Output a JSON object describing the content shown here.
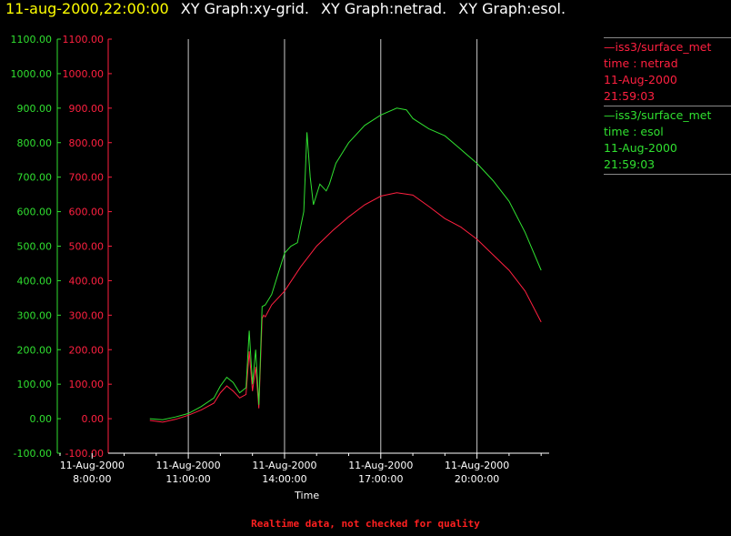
{
  "header": {
    "timestamp": "11-aug-2000,22:00:00",
    "graph1": "XY Graph:xy-grid.",
    "graph2": "XY Graph:netrad.",
    "graph3": "XY Graph:esol."
  },
  "colors": {
    "background": "#000000",
    "timestamp": "#ffff00",
    "netrad": "#ff2040",
    "esol": "#30e030",
    "axes_x": "#ffffff",
    "footer": "#ff2020"
  },
  "legend": [
    {
      "line1": "—iss3/surface_met",
      "line2": "time : netrad",
      "line3": "11-Aug-2000",
      "line4": "21:59:03"
    },
    {
      "line1": "—iss3/surface_met",
      "line2": "time : esol",
      "line3": "11-Aug-2000",
      "line4": "21:59:03"
    }
  ],
  "footer": "Realtime data, not checked for quality",
  "chart_data": {
    "type": "line",
    "xlabel": "Time",
    "ylabel": "",
    "x_unit": "hours since 11-Aug-2000 00:00",
    "xlim": [
      7.0,
      22.25
    ],
    "ylim": [
      -100,
      1100
    ],
    "yticks": [
      -100,
      0,
      100,
      200,
      300,
      400,
      500,
      600,
      700,
      800,
      900,
      1000,
      1100
    ],
    "ytick_labels": [
      "-100.00",
      "0.00",
      "100.00",
      "200.00",
      "300.00",
      "400.00",
      "500.00",
      "600.00",
      "700.00",
      "800.00",
      "900.00",
      "1000.00",
      "1100.00"
    ],
    "xticks": [
      {
        "x": 8,
        "date": "11-Aug-2000",
        "time": "8:00:00"
      },
      {
        "x": 11,
        "date": "11-Aug-2000",
        "time": "11:00:00"
      },
      {
        "x": 14,
        "date": "11-Aug-2000",
        "time": "14:00:00"
      },
      {
        "x": 17,
        "date": "11-Aug-2000",
        "time": "17:00:00"
      },
      {
        "x": 20,
        "date": "11-Aug-2000",
        "time": "20:00:00"
      }
    ],
    "vertical_gridlines": [
      11,
      14,
      17,
      20
    ],
    "series": [
      {
        "name": "netrad",
        "x": [
          9.8,
          10.2,
          10.6,
          11.0,
          11.4,
          11.8,
          12.0,
          12.2,
          12.4,
          12.6,
          12.8,
          12.9,
          13.0,
          13.1,
          13.2,
          13.3,
          13.35,
          13.4,
          13.6,
          14.0,
          14.5,
          15.0,
          15.5,
          16.0,
          16.5,
          17.0,
          17.5,
          18.0,
          18.5,
          19.0,
          19.5,
          20.0,
          20.5,
          21.0,
          21.5,
          22.0
        ],
        "y": [
          -5,
          -10,
          -2,
          10,
          25,
          45,
          75,
          95,
          80,
          60,
          70,
          195,
          80,
          150,
          30,
          290,
          300,
          295,
          330,
          370,
          440,
          500,
          545,
          585,
          620,
          645,
          655,
          648,
          615,
          580,
          555,
          520,
          475,
          430,
          370,
          280
        ]
      },
      {
        "name": "esol",
        "x": [
          9.8,
          10.2,
          10.6,
          11.0,
          11.4,
          11.8,
          12.0,
          12.2,
          12.4,
          12.6,
          12.8,
          12.9,
          13.0,
          13.1,
          13.2,
          13.3,
          13.4,
          13.6,
          13.8,
          14.0,
          14.2,
          14.4,
          14.6,
          14.7,
          14.8,
          14.9,
          15.1,
          15.3,
          15.4,
          15.6,
          16.0,
          16.5,
          17.0,
          17.5,
          17.8,
          18.0,
          18.5,
          19.0,
          19.5,
          20.0,
          20.5,
          21.0,
          21.5,
          22.0
        ],
        "y": [
          0,
          -3,
          5,
          15,
          35,
          60,
          95,
          120,
          105,
          75,
          90,
          255,
          100,
          200,
          40,
          325,
          330,
          360,
          420,
          480,
          500,
          510,
          600,
          830,
          700,
          620,
          680,
          660,
          680,
          740,
          800,
          850,
          880,
          900,
          895,
          870,
          840,
          820,
          780,
          740,
          690,
          630,
          540,
          430
        ]
      }
    ]
  }
}
